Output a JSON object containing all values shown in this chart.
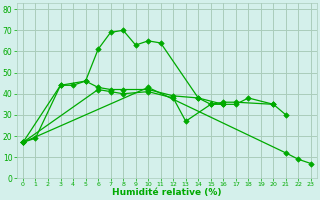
{
  "background_color": "#d4f0eb",
  "grid_color": "#aaccbb",
  "line_color": "#00aa00",
  "marker_color": "#00aa00",
  "xlabel": "Humidité relative (%)",
  "xlabel_color": "#00aa00",
  "tick_color": "#00aa00",
  "ylim": [
    0,
    83
  ],
  "yticks": [
    0,
    10,
    20,
    30,
    40,
    50,
    60,
    70,
    80
  ],
  "xlim": [
    -0.5,
    23.5
  ],
  "xticks": [
    0,
    1,
    2,
    3,
    4,
    5,
    6,
    7,
    8,
    9,
    10,
    11,
    12,
    13,
    14,
    15,
    16,
    17,
    18,
    19,
    20,
    21,
    22,
    23
  ],
  "series_data": {
    "line1_x": [
      0,
      1,
      3,
      4,
      5,
      6,
      7,
      8,
      9,
      10,
      11,
      14,
      16,
      17,
      18,
      20,
      21
    ],
    "line1_y": [
      17,
      19,
      44,
      44,
      46,
      61,
      69,
      70,
      63,
      65,
      64,
      38,
      35,
      35,
      38,
      35,
      30
    ],
    "line2_x": [
      0,
      3,
      5,
      6,
      7,
      8,
      10,
      12,
      14,
      15,
      16,
      17,
      20
    ],
    "line2_y": [
      17,
      44,
      46,
      43,
      42,
      42,
      42,
      39,
      38,
      35,
      36,
      36,
      35
    ],
    "line3_x": [
      0,
      6,
      7,
      8,
      10,
      12,
      13,
      15,
      16
    ],
    "line3_y": [
      17,
      42,
      41,
      40,
      41,
      38,
      27,
      35,
      35
    ],
    "line4_x": [
      0,
      10,
      21,
      22,
      23
    ],
    "line4_y": [
      17,
      43,
      12,
      9,
      7
    ]
  }
}
